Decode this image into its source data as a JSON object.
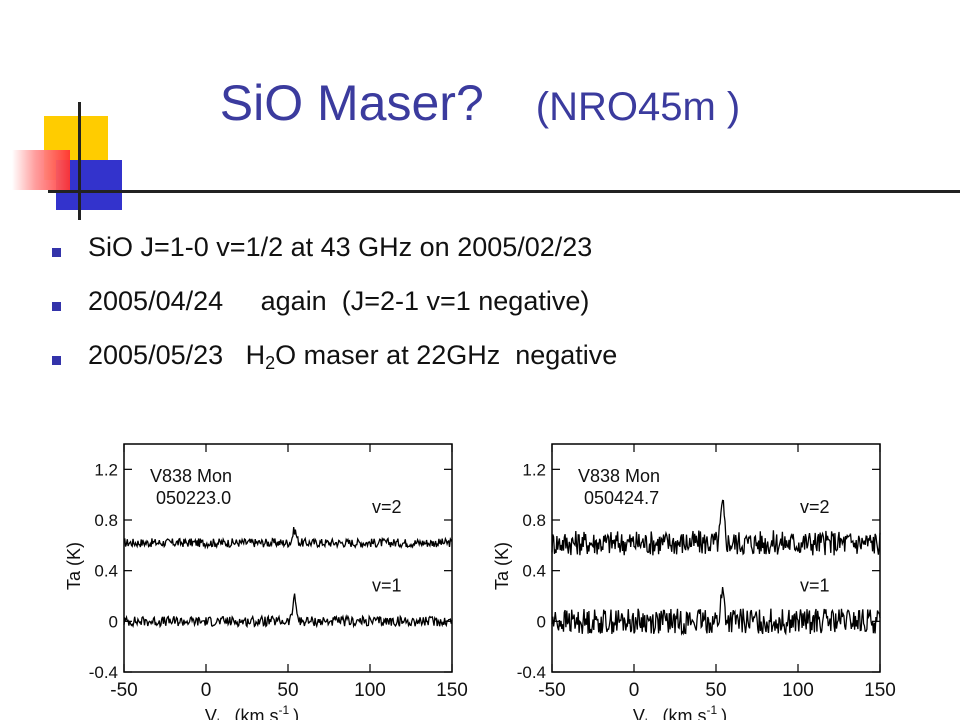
{
  "slide": {
    "title_main": "SiO Maser?",
    "title_sub": "(NRO45m )",
    "bullets": [
      {
        "text": "SiO J=1-0 v=1/2 at 43 GHz on 2005/02/23"
      },
      {
        "text": "2005/04/24     again  (J=2-1 v=1 negative)"
      },
      {
        "pre": "2005/05/23   H",
        "sub": "2",
        "post": "O maser at 22GHz  negative"
      }
    ]
  },
  "chart_data": [
    {
      "type": "line",
      "title": "V838 Mon",
      "subtitle": "050223.0",
      "ylabel": "Ta (K)",
      "xlabel": "V",
      "xlabel_sub": "lsr",
      "xlabel_unit": "(km s",
      "xlabel_exp": "-1",
      "xlabel_close": ")",
      "xlim": [
        -50,
        150
      ],
      "ylim": [
        -0.4,
        1.4
      ],
      "xticks": [
        -50,
        0,
        50,
        100,
        150
      ],
      "xtick_labels": [
        "-50",
        "0",
        "50",
        "100",
        "150"
      ],
      "yticks": [
        -0.4,
        0,
        0.4,
        0.8,
        1.2
      ],
      "ytick_labels": [
        "-0.4",
        "0",
        "0.4",
        "0.8",
        "1.2"
      ],
      "series": [
        {
          "name": "v=2",
          "baseline": 0.62,
          "noise": 0.035,
          "peaks": [
            {
              "x": 54,
              "height": 0.1
            }
          ]
        },
        {
          "name": "v=1",
          "baseline": 0.0,
          "noise": 0.04,
          "peaks": [
            {
              "x": 54,
              "height": 0.18
            }
          ]
        }
      ]
    },
    {
      "type": "line",
      "title": "V838 Mon",
      "subtitle": "050424.7",
      "ylabel": "Ta (K)",
      "xlabel": "V",
      "xlabel_sub": "lsr",
      "xlabel_unit": "(km s",
      "xlabel_exp": "-1",
      "xlabel_close": ")",
      "xlim": [
        -50,
        150
      ],
      "ylim": [
        -0.4,
        1.4
      ],
      "xticks": [
        -50,
        0,
        50,
        100,
        150
      ],
      "xtick_labels": [
        "-50",
        "0",
        "50",
        "100",
        "150"
      ],
      "yticks": [
        -0.4,
        0,
        0.4,
        0.8,
        1.2
      ],
      "ytick_labels": [
        "-0.4",
        "0",
        "0.4",
        "0.8",
        "1.2"
      ],
      "series": [
        {
          "name": "v=2",
          "baseline": 0.62,
          "noise": 0.1,
          "peaks": [
            {
              "x": 54,
              "height": 0.28
            }
          ]
        },
        {
          "name": "v=1",
          "baseline": 0.0,
          "noise": 0.1,
          "peaks": [
            {
              "x": 54,
              "height": 0.22
            }
          ]
        }
      ]
    }
  ]
}
